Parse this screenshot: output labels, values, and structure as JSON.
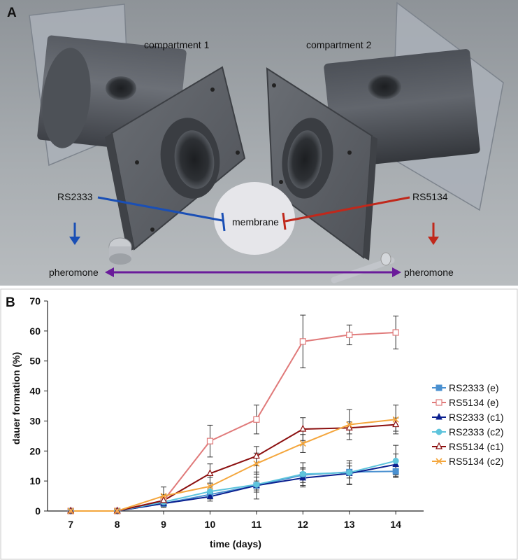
{
  "panel_a": {
    "letter": "A",
    "compartment_1": "compartment 1",
    "compartment_2": "compartment 2",
    "strain_left": "RS2333",
    "strain_right": "RS5134",
    "membrane": "membrane",
    "pheromone_left": "pheromone",
    "pheromone_right": "pheromone",
    "colors": {
      "left_line": "#1a4fb5",
      "right_line": "#c0281b",
      "pheromone_arrow": "#6a1b9a",
      "membrane_disc": "#e6e6ea"
    }
  },
  "panel_b": {
    "letter": "B"
  },
  "chart_data": {
    "type": "line",
    "title": "",
    "xlabel": "time (days)",
    "ylabel": "dauer formation (%)",
    "x": [
      7,
      8,
      9,
      10,
      11,
      12,
      13,
      14
    ],
    "xlim": [
      6.5,
      14.6
    ],
    "ylim": [
      0,
      70
    ],
    "yticks": [
      0,
      10,
      20,
      30,
      40,
      50,
      60,
      70
    ],
    "grid": false,
    "legend": "right",
    "series": [
      {
        "name": "RS2333 (e)",
        "color": "#4a90d0",
        "marker": "square-filled",
        "values": [
          0,
          0,
          2.5,
          5.5,
          8.5,
          12,
          13,
          13.2
        ],
        "errors": [
          0,
          0,
          1,
          1.5,
          1.5,
          2.5,
          2,
          2
        ]
      },
      {
        "name": "RS5134 (e)",
        "color": "#e07a7a",
        "marker": "square-open",
        "values": [
          0,
          0,
          3.5,
          23.3,
          30.5,
          56.5,
          58.7,
          59.5
        ],
        "errors": [
          0,
          0,
          2,
          5.3,
          4.8,
          8.8,
          3.3,
          5.5
        ]
      },
      {
        "name": "RS2333 (c1)",
        "color": "#0a1f8f",
        "marker": "triangle-filled",
        "values": [
          0,
          0,
          2.5,
          4.8,
          8.5,
          11,
          12.5,
          15.5
        ],
        "errors": [
          0,
          0,
          1.3,
          1.5,
          4.5,
          3,
          3.5,
          3.5
        ]
      },
      {
        "name": "RS2333 (c2)",
        "color": "#5ec4dc",
        "marker": "circle-filled",
        "values": [
          0,
          0,
          3,
          6.5,
          8.8,
          12.3,
          12.8,
          16.7
        ],
        "errors": [
          0,
          0,
          1.5,
          1.5,
          2.5,
          3.8,
          4,
          5.2
        ]
      },
      {
        "name": "RS5134 (c1)",
        "color": "#8b0f0f",
        "marker": "triangle-open",
        "values": [
          0,
          0,
          3.5,
          12.5,
          18.3,
          27.3,
          27.7,
          28.8
        ],
        "errors": [
          0,
          0,
          1.5,
          3.2,
          3.2,
          3.8,
          2,
          2.2
        ]
      },
      {
        "name": "RS5134 (c2)",
        "color": "#f4a63c",
        "marker": "x",
        "values": [
          0,
          0,
          5,
          8.2,
          15.8,
          22.5,
          28.8,
          30.5
        ],
        "errors": [
          0,
          0,
          3,
          3,
          3.5,
          3,
          5,
          4.8
        ]
      }
    ]
  }
}
